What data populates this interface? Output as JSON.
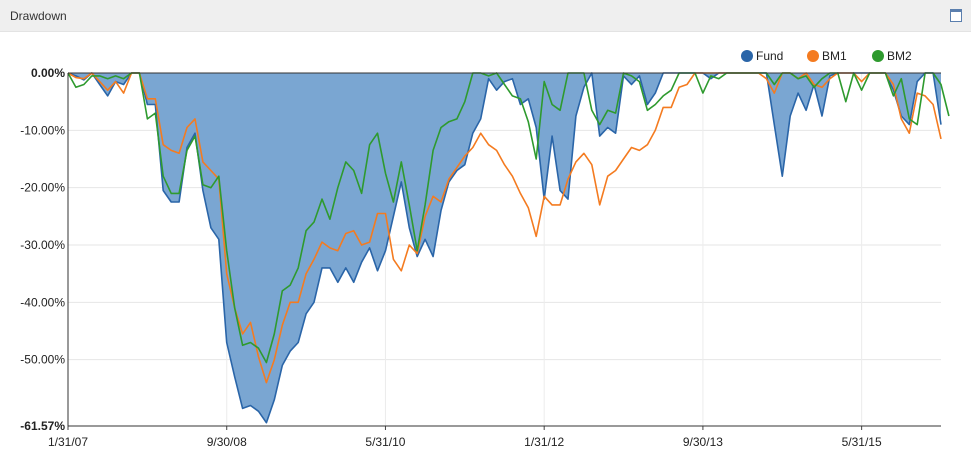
{
  "panel": {
    "title": "Drawdown"
  },
  "chart_data": {
    "type": "area",
    "title": "Drawdown",
    "xlabel": "",
    "ylabel": "",
    "x_tick_labels": [
      "1/31/07",
      "9/30/08",
      "5/31/10",
      "1/31/12",
      "9/30/13",
      "5/31/15"
    ],
    "y_tick_labels": [
      "0.00%",
      "-10.00%",
      "-20.00%",
      "-30.00%",
      "-40.00%",
      "-50.00%",
      "-61.57%"
    ],
    "y_ticks": [
      0,
      -10,
      -20,
      -30,
      -40,
      -50,
      -61.57
    ],
    "x_tick_months": [
      0,
      20,
      40,
      60,
      80,
      100
    ],
    "x_start": "1/31/07",
    "x_end": "10/31/16",
    "ylim": [
      -61.57,
      0
    ],
    "legend_position": "top-right",
    "grid": true,
    "series": [
      {
        "name": "Fund",
        "color": "#2a65a8",
        "fill": "#7aa6d2",
        "style": "filled",
        "values": [
          0,
          -0.5,
          -1.2,
          0,
          -2,
          -4,
          -1.5,
          -2,
          0,
          0,
          -5.5,
          -5.5,
          -20.5,
          -22.5,
          -22.5,
          -13,
          -10.5,
          -20.5,
          -27,
          -29,
          -47,
          -53,
          -58.5,
          -58,
          -59,
          -61,
          -57,
          -51,
          -48.5,
          -47,
          -42,
          -40,
          -34,
          -34,
          -36.5,
          -34,
          -36.5,
          -33,
          -30.5,
          -34.5,
          -31,
          -25,
          -19,
          -27,
          -32,
          -29,
          -32,
          -24,
          -19,
          -17,
          -16,
          -10.5,
          -8,
          -1,
          -3,
          -1.5,
          -1,
          -5.5,
          -4.5,
          -9.5,
          -22,
          -11,
          -20.5,
          -22,
          -7.5,
          -2.5,
          0,
          -11,
          -9.5,
          -10.5,
          -0.5,
          -2,
          -0.5,
          -5.5,
          -3.5,
          0,
          0,
          0,
          0,
          0,
          0,
          -1,
          0,
          0,
          0,
          0,
          0,
          0,
          0,
          -9,
          -18,
          -7.5,
          -3.5,
          -6.5,
          -2,
          -7.5,
          -0.5,
          0,
          0,
          0,
          0,
          0,
          0,
          0,
          -3,
          -7.5,
          -9,
          -1.5,
          0,
          0,
          -9
        ]
      },
      {
        "name": "BM1",
        "color": "#f47b20",
        "style": "line",
        "values": [
          0,
          -0.8,
          -1,
          0,
          -1.5,
          -3,
          -1.5,
          -3.5,
          0,
          0,
          -4.5,
          -4.5,
          -12.5,
          -13.5,
          -14,
          -9.5,
          -8,
          -15.5,
          -17,
          -18.5,
          -35,
          -41,
          -45.5,
          -43.5,
          -49.5,
          -54,
          -50,
          -44,
          -40,
          -40,
          -35,
          -32.5,
          -29.5,
          -30.5,
          -31,
          -28,
          -27.5,
          -30,
          -29.5,
          -24.5,
          -24.5,
          -32.5,
          -34.5,
          -30,
          -31.5,
          -25,
          -21.5,
          -22.5,
          -18.5,
          -16.5,
          -14.5,
          -13,
          -10.5,
          -12.5,
          -13.5,
          -16,
          -18,
          -21,
          -23.5,
          -28.5,
          -21.5,
          -23,
          -23,
          -18.5,
          -15.5,
          -14,
          -16,
          -23,
          -18,
          -17,
          -15,
          -13,
          -13.5,
          -12.5,
          -10,
          -6,
          -6,
          -2.5,
          -2,
          0,
          0,
          0,
          0,
          0,
          0,
          0,
          0,
          0,
          -1,
          -3.5,
          0,
          0,
          -1,
          0,
          -2,
          -2.5,
          -1,
          0,
          0,
          0,
          -1.5,
          0,
          0,
          0,
          -2,
          -8,
          -10.5,
          -3.5,
          -4,
          -5.5,
          -11.5
        ]
      },
      {
        "name": "BM2",
        "color": "#2e9a2e",
        "style": "line",
        "values": [
          0,
          -2.5,
          -2,
          -0.5,
          -0.5,
          -1,
          -0.5,
          -1,
          0,
          0,
          -8,
          -7,
          -18,
          -21,
          -21,
          -13.5,
          -11,
          -19.5,
          -20,
          -18,
          -31,
          -41,
          -47.5,
          -47,
          -48,
          -50.5,
          -45.5,
          -38,
          -37,
          -34,
          -27.5,
          -26,
          -22,
          -25.5,
          -20,
          -15.5,
          -17,
          -21,
          -12.5,
          -10.5,
          -17.5,
          -22.5,
          -15.5,
          -23,
          -31,
          -23,
          -13.5,
          -9.5,
          -8.5,
          -8,
          -5,
          0,
          0,
          -0.5,
          0,
          -2,
          -4,
          -4.5,
          -8.5,
          -15,
          -1.5,
          -5.5,
          -6.5,
          0,
          0,
          0,
          -6.5,
          -9,
          -6.5,
          -7,
          0,
          -0.5,
          -1.5,
          -6.5,
          -5.5,
          -4,
          -3,
          0,
          0,
          0,
          -3.5,
          -0.5,
          -1,
          0,
          0,
          0,
          0,
          0,
          0,
          -2,
          0,
          0,
          -1,
          -0.5,
          -2.5,
          -1,
          0,
          0,
          -5,
          0,
          -3,
          0,
          0,
          0,
          -4,
          -1,
          -8,
          -9,
          0,
          0,
          -2,
          -7.5
        ]
      }
    ]
  }
}
